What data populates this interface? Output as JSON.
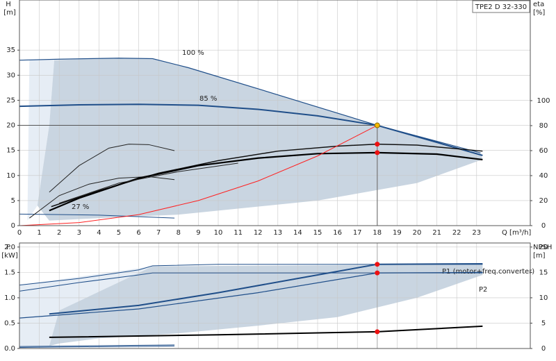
{
  "chart_data": [
    {
      "type": "line",
      "title": "TPE2 D 32-330",
      "ylabel": "H",
      "yunit": "[m]",
      "y2label": "eta",
      "y2unit": "[%]",
      "xlabel": "Q [m³/h]",
      "xlim": [
        0,
        25.7
      ],
      "xticks": [
        0,
        1,
        2,
        3,
        4,
        5,
        6,
        7,
        8,
        9,
        10,
        11,
        12,
        13,
        14,
        15,
        16,
        17,
        18,
        19,
        20,
        21,
        22,
        23
      ],
      "ylim": [
        0,
        45
      ],
      "yticks": [
        0,
        5,
        10,
        15,
        20,
        25,
        30,
        35
      ],
      "y2lim": [
        0,
        180.5
      ],
      "y2ticks": [
        0,
        20,
        40,
        60,
        80,
        100
      ],
      "grid": true,
      "regions": [
        {
          "color": "#e6edf5",
          "x": [
            0.4,
            0.5,
            1.75,
            1.5,
            0.9
          ],
          "values": [
            1,
            33,
            33,
            20,
            4
          ]
        },
        {
          "color": "#c9d5e1",
          "x": [
            0.9,
            1.5,
            1.75,
            5,
            6.7,
            8.5,
            18,
            23.2,
            23.3,
            20,
            15,
            10,
            8,
            4,
            1.5
          ],
          "values": [
            4,
            20,
            33,
            33.4,
            33.2,
            31.5,
            20,
            14.3,
            13.2,
            8.5,
            5,
            3,
            2.2,
            1.5,
            1
          ]
        }
      ],
      "series": [
        {
          "name": "100 %",
          "color": "#1f4e89",
          "width": 1.2,
          "x": [
            0,
            2,
            5,
            6.7,
            8.5,
            12,
            18,
            23.2
          ],
          "values": [
            33,
            33.2,
            33.4,
            33.3,
            31.5,
            27.3,
            20,
            14.5
          ]
        },
        {
          "name": "85 %",
          "color": "#1f4e89",
          "width": 2,
          "x": [
            0,
            3,
            6,
            9,
            12,
            15,
            18,
            23.3
          ],
          "values": [
            23.8,
            24.1,
            24.2,
            24,
            23.2,
            21.9,
            20,
            14
          ]
        },
        {
          "name": "27 %",
          "color": "#1f4e89",
          "width": 1,
          "x": [
            0,
            4,
            7.8
          ],
          "values": [
            2.3,
            2.1,
            1.5
          ]
        },
        {
          "color": "#222222",
          "width": 1,
          "axis": "y2",
          "x": [
            1.5,
            3,
            4.5,
            5.5,
            6.5,
            7.8
          ],
          "values": [
            26.8,
            48,
            62,
            65.2,
            64.8,
            60
          ]
        },
        {
          "color": "#222222",
          "width": 1,
          "axis": "y2",
          "x": [
            0.5,
            2,
            3.5,
            5,
            6.5,
            7.8
          ],
          "values": [
            6,
            24,
            33.2,
            38,
            39.2,
            36.8
          ]
        },
        {
          "color": "#111111",
          "width": 1.5,
          "axis": "y2",
          "x": [
            1.6,
            4,
            7,
            10,
            13,
            16,
            18,
            20,
            23.3
          ],
          "values": [
            15.2,
            28,
            42,
            52,
            59.6,
            63.6,
            65.2,
            64.4,
            59.6
          ]
        },
        {
          "color": "#000000",
          "width": 2.2,
          "axis": "y2",
          "x": [
            1.5,
            3,
            6,
            9,
            12,
            15,
            18,
            21,
            23.3
          ],
          "values": [
            12,
            22,
            38,
            48,
            54,
            57.6,
            58.4,
            57.2,
            52.8
          ]
        },
        {
          "color": "#222222",
          "width": 1,
          "axis": "y2",
          "x": [
            2,
            5,
            8,
            11
          ],
          "values": [
            18,
            34,
            43.2,
            50
          ]
        },
        {
          "color": "#ff2020",
          "width": 1,
          "x": [
            0,
            3,
            6,
            9,
            12,
            15,
            18
          ],
          "values": [
            0,
            0.6,
            2.2,
            5,
            8.9,
            13.9,
            20
          ]
        }
      ],
      "points": [
        {
          "x": 18,
          "y": 20,
          "color": "#f5b800"
        },
        {
          "x": 18,
          "y": 65.2,
          "axis": "y2",
          "color": "#ee1111"
        },
        {
          "x": 18,
          "y": 58.4,
          "axis": "y2",
          "color": "#ee1111"
        }
      ]
    },
    {
      "type": "line",
      "ylabel": "P",
      "yunit": "[kW]",
      "y2label": "NPSH",
      "y2unit": "[m]",
      "xlim": [
        0,
        25.7
      ],
      "ylim": [
        0,
        2.08
      ],
      "yticks": [
        {
          "value": 0,
          "label": "0.0"
        },
        0.5,
        {
          "value": 1,
          "label": "1.0"
        },
        1.5,
        {
          "value": 2,
          "label": "2.0"
        }
      ],
      "y2lim": [
        0,
        20.8
      ],
      "y2ticks": [
        0,
        5,
        10,
        15,
        20
      ],
      "grid": true,
      "regions": [
        {
          "color": "#e6edf5",
          "x": [
            0,
            0,
            6.7,
            2,
            1.5
          ],
          "values": [
            0,
            1.25,
            1.62,
            0.75,
            0.05
          ]
        },
        {
          "color": "#c9d5e1",
          "x": [
            1.5,
            2,
            6.7,
            23.3,
            23.3,
            20,
            16,
            12,
            8,
            4,
            2
          ],
          "values": [
            0.05,
            0.75,
            1.62,
            1.66,
            1.45,
            1,
            0.62,
            0.45,
            0.3,
            0.2,
            0.1
          ]
        }
      ],
      "series": [
        {
          "color": "#1f4e89",
          "width": 1,
          "x": [
            0,
            3,
            6,
            6.7,
            10,
            18,
            23.3
          ],
          "values": [
            1.25,
            1.38,
            1.55,
            1.63,
            1.66,
            1.66,
            1.66
          ]
        },
        {
          "color": "#1f4e89",
          "width": 1,
          "x": [
            0,
            3,
            6,
            6.7,
            18,
            23.3
          ],
          "values": [
            1.13,
            1.3,
            1.45,
            1.49,
            1.49,
            1.49
          ]
        },
        {
          "name": "P1 (motor+freq.converter)",
          "color": "#1f4e89",
          "width": 2,
          "x": [
            1.5,
            6,
            10,
            14,
            18,
            23.3
          ],
          "values": [
            0.68,
            0.85,
            1.1,
            1.38,
            1.66,
            1.67
          ]
        },
        {
          "name": "P2",
          "color": "#1f4e89",
          "width": 1.2,
          "x": [
            0,
            6,
            12,
            18,
            23.3
          ],
          "values": [
            0.6,
            0.78,
            1.1,
            1.49,
            1.5
          ]
        },
        {
          "color": "#000000",
          "width": 2,
          "axis": "y2",
          "x": [
            1.5,
            10,
            18,
            23.3
          ],
          "values": [
            2.2,
            2.7,
            3.3,
            4.4
          ]
        },
        {
          "color": "#1f4e89",
          "width": 1,
          "x": [
            0,
            7.8
          ],
          "values": [
            0.04,
            0.07
          ]
        },
        {
          "color": "#1f4e89",
          "width": 1,
          "x": [
            0,
            7.8
          ],
          "values": [
            0.02,
            0.05
          ]
        }
      ],
      "points": [
        {
          "x": 18,
          "y": 1.66,
          "color": "#ee1111"
        },
        {
          "x": 18,
          "y": 1.49,
          "color": "#ee1111"
        },
        {
          "x": 18,
          "y": 3.3,
          "axis": "y2",
          "color": "#ee1111"
        }
      ]
    }
  ]
}
